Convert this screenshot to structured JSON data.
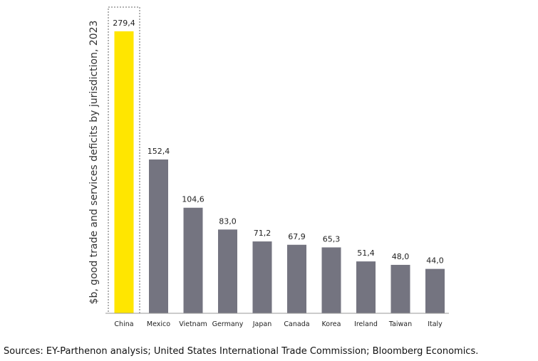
{
  "chart_data": {
    "type": "bar",
    "ylabel": "$b, good trade and services deficits by jurisdiction, 2023",
    "categories": [
      "China",
      "Mexico",
      "Vietnam",
      "Germany",
      "Japan",
      "Canada",
      "Korea",
      "Ireland",
      "Taiwan",
      "Italy"
    ],
    "values": [
      279.4,
      152.4,
      104.6,
      83.0,
      71.2,
      67.9,
      65.3,
      51.4,
      48.0,
      44.0
    ],
    "value_labels": [
      "279,4",
      "152,4",
      "104,6",
      "83,0",
      "71,2",
      "67,9",
      "65,3",
      "51,4",
      "48,0",
      "44,0"
    ],
    "highlight": "China",
    "colors": {
      "highlight": "#FFE600",
      "bar": "#747480",
      "axis": "#999999",
      "highlight_box": "#666666"
    },
    "ylim": [
      0,
      300
    ],
    "grid": false,
    "legend": "none"
  },
  "source_note": "Sources: EY-Parthenon analysis; United States International Trade Commission; Bloomberg Economics."
}
